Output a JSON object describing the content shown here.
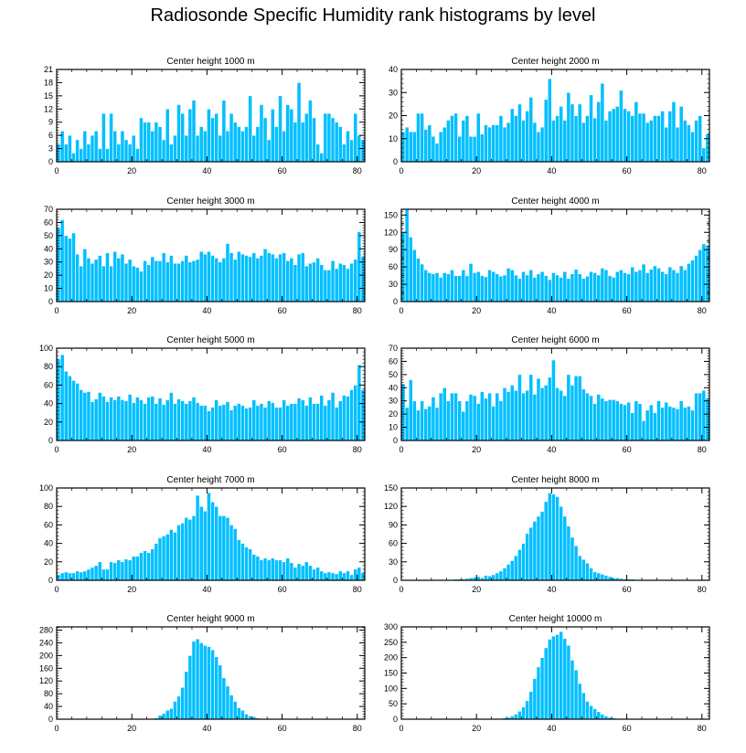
{
  "title": "Radiosonde Specific Humidity rank histograms by level",
  "colors": {
    "bar": "#00BFFF",
    "bar_edge": "#ffffff",
    "axis": "#000000"
  },
  "chart_data": [
    {
      "type": "bar",
      "title": "Center height 1000 m",
      "ylim": [
        0,
        21
      ],
      "yticks": [
        0,
        3,
        6,
        9,
        12,
        15,
        18,
        21
      ],
      "xticks": [
        0,
        20,
        40,
        60,
        80
      ],
      "values": [
        4,
        7,
        4,
        6,
        2,
        5,
        3,
        7,
        4,
        6,
        7,
        3,
        11,
        3,
        11,
        7,
        4,
        7,
        5,
        4,
        6,
        3,
        10,
        9,
        9,
        7,
        9,
        8,
        5,
        12,
        4,
        6,
        13,
        11,
        6,
        12,
        14,
        6,
        8,
        7,
        12,
        10,
        11,
        6,
        14,
        7,
        11,
        9,
        8,
        7,
        8,
        15,
        6,
        8,
        13,
        10,
        5,
        12,
        8,
        15,
        7,
        13,
        12,
        9,
        18,
        9,
        11,
        14,
        10,
        4,
        2,
        11,
        11,
        10,
        9,
        8,
        4,
        7,
        5,
        11,
        6,
        5
      ]
    },
    {
      "type": "bar",
      "title": "Center height 2000 m",
      "ylim": [
        0,
        40
      ],
      "yticks": [
        0,
        10,
        20,
        30,
        40
      ],
      "xticks": [
        0,
        20,
        40,
        60,
        80
      ],
      "values": [
        13,
        15,
        13,
        13,
        21,
        21,
        14,
        16,
        11,
        8,
        13,
        15,
        18,
        20,
        21,
        11,
        18,
        20,
        11,
        11,
        21,
        12,
        16,
        15,
        16,
        16,
        20,
        15,
        17,
        23,
        20,
        25,
        18,
        22,
        28,
        17,
        13,
        15,
        27,
        36,
        18,
        20,
        24,
        18,
        30,
        25,
        20,
        25,
        17,
        20,
        29,
        19,
        26,
        34,
        18,
        22,
        23,
        24,
        31,
        23,
        22,
        20,
        26,
        21,
        21,
        17,
        18,
        20,
        20,
        22,
        15,
        22,
        26,
        15,
        24,
        18,
        16,
        13,
        18,
        20,
        6,
        12
      ]
    },
    {
      "type": "bar",
      "title": "Center height 3000 m",
      "ylim": [
        0,
        70
      ],
      "yticks": [
        0,
        10,
        20,
        30,
        40,
        50,
        60,
        70
      ],
      "xticks": [
        0,
        20,
        40,
        60,
        80
      ],
      "values": [
        56,
        62,
        50,
        48,
        52,
        36,
        27,
        40,
        33,
        29,
        32,
        35,
        27,
        37,
        27,
        38,
        33,
        36,
        29,
        32,
        27,
        26,
        23,
        31,
        28,
        34,
        31,
        31,
        37,
        30,
        35,
        29,
        29,
        31,
        35,
        30,
        31,
        32,
        38,
        36,
        38,
        35,
        33,
        30,
        33,
        44,
        37,
        32,
        38,
        36,
        35,
        34,
        37,
        33,
        35,
        40,
        37,
        36,
        33,
        36,
        37,
        31,
        33,
        28,
        36,
        37,
        27,
        29,
        30,
        33,
        28,
        24,
        24,
        31,
        25,
        29,
        28,
        25,
        29,
        32,
        53,
        34
      ]
    },
    {
      "type": "bar",
      "title": "Center height 4000 m",
      "ylim": [
        0,
        160
      ],
      "yticks": [
        0,
        15,
        30,
        45,
        60,
        75,
        90,
        105,
        120,
        135,
        150,
        160
      ],
      "ytick_labels": [
        "0",
        "30",
        "60",
        "90",
        "120",
        "150"
      ],
      "xticks": [
        0,
        20,
        40,
        60,
        80
      ],
      "values": [
        120,
        160,
        112,
        90,
        75,
        65,
        55,
        50,
        48,
        50,
        42,
        50,
        48,
        55,
        45,
        45,
        55,
        45,
        66,
        50,
        52,
        45,
        43,
        55,
        52,
        48,
        44,
        46,
        58,
        55,
        46,
        40,
        52,
        46,
        55,
        42,
        48,
        52,
        45,
        38,
        50,
        46,
        42,
        52,
        40,
        48,
        56,
        48,
        40,
        44,
        52,
        50,
        46,
        58,
        55,
        45,
        42,
        52,
        55,
        50,
        48,
        60,
        52,
        55,
        65,
        50,
        56,
        62,
        58,
        52,
        48,
        60,
        55,
        50,
        62,
        55,
        66,
        72,
        80,
        90,
        100,
        98
      ]
    },
    {
      "type": "bar",
      "title": "Center height 5000 m",
      "ylim": [
        0,
        100
      ],
      "yticks": [
        0,
        20,
        40,
        60,
        80,
        100
      ],
      "xticks": [
        0,
        20,
        40,
        60,
        80
      ],
      "values": [
        88,
        93,
        75,
        70,
        65,
        62,
        55,
        52,
        53,
        42,
        45,
        52,
        48,
        42,
        47,
        44,
        48,
        44,
        43,
        50,
        41,
        47,
        44,
        40,
        47,
        48,
        40,
        46,
        39,
        44,
        52,
        40,
        45,
        43,
        40,
        43,
        47,
        41,
        38,
        38,
        32,
        36,
        44,
        38,
        39,
        42,
        33,
        38,
        40,
        38,
        35,
        36,
        44,
        38,
        40,
        36,
        43,
        41,
        36,
        36,
        44,
        38,
        40,
        40,
        46,
        44,
        38,
        47,
        40,
        40,
        49,
        38,
        44,
        52,
        36,
        43,
        49,
        48,
        55,
        60,
        82,
        55
      ]
    },
    {
      "type": "bar",
      "title": "Center height 6000 m",
      "ylim": [
        0,
        70
      ],
      "yticks": [
        0,
        10,
        20,
        30,
        40,
        50,
        60,
        70
      ],
      "xticks": [
        0,
        20,
        40,
        60,
        80
      ],
      "values": [
        43,
        25,
        46,
        30,
        23,
        30,
        24,
        26,
        33,
        25,
        36,
        40,
        30,
        36,
        36,
        30,
        22,
        30,
        35,
        34,
        28,
        37,
        32,
        36,
        26,
        36,
        30,
        40,
        37,
        42,
        38,
        50,
        36,
        38,
        50,
        35,
        47,
        40,
        42,
        48,
        61,
        40,
        38,
        34,
        50,
        42,
        49,
        49,
        39,
        36,
        34,
        28,
        35,
        32,
        30,
        31,
        31,
        30,
        28,
        27,
        29,
        21,
        30,
        28,
        15,
        23,
        27,
        21,
        30,
        25,
        29,
        26,
        25,
        24,
        30,
        25,
        26,
        23,
        36,
        36,
        38,
        32
      ]
    },
    {
      "type": "bar",
      "title": "Center height 7000 m",
      "ylim": [
        0,
        100
      ],
      "yticks": [
        0,
        20,
        40,
        60,
        80,
        100
      ],
      "xticks": [
        0,
        20,
        40,
        60,
        80
      ],
      "values": [
        6,
        8,
        9,
        8,
        8,
        10,
        9,
        10,
        12,
        14,
        16,
        20,
        12,
        12,
        20,
        19,
        22,
        20,
        23,
        22,
        26,
        26,
        30,
        32,
        30,
        34,
        40,
        46,
        48,
        50,
        55,
        52,
        60,
        62,
        68,
        66,
        70,
        92,
        80,
        75,
        95,
        85,
        80,
        70,
        70,
        68,
        60,
        56,
        44,
        40,
        36,
        34,
        28,
        26,
        22,
        24,
        22,
        24,
        22,
        22,
        20,
        24,
        19,
        14,
        18,
        16,
        20,
        16,
        12,
        14,
        10,
        8,
        9,
        8,
        7,
        10,
        8,
        10,
        6,
        12,
        14,
        8
      ]
    },
    {
      "type": "bar",
      "title": "Center height 8000 m",
      "ylim": [
        0,
        150
      ],
      "yticks": [
        0,
        30,
        60,
        90,
        120,
        150
      ],
      "xticks": [
        0,
        20,
        40,
        60,
        80
      ],
      "values": [
        0,
        0,
        0,
        0,
        0,
        0,
        0,
        0,
        0,
        0,
        1,
        1,
        1,
        1,
        2,
        2,
        2,
        3,
        4,
        5,
        6,
        4,
        8,
        7,
        9,
        12,
        15,
        20,
        26,
        32,
        40,
        50,
        60,
        76,
        86,
        96,
        104,
        112,
        128,
        142,
        140,
        136,
        120,
        104,
        88,
        70,
        56,
        40,
        34,
        28,
        20,
        14,
        12,
        10,
        8,
        6,
        4,
        4,
        3,
        2,
        2,
        2,
        1,
        1,
        1,
        0,
        0,
        0,
        0,
        0,
        0,
        0,
        0,
        0,
        0,
        0,
        0,
        0,
        0,
        0,
        0,
        0
      ]
    },
    {
      "type": "bar",
      "title": "Center height 9000 m",
      "ylim": [
        0,
        290
      ],
      "yticks": [
        0,
        40,
        80,
        120,
        160,
        200,
        240,
        280
      ],
      "xticks": [
        0,
        20,
        40,
        60,
        80
      ],
      "values": [
        0,
        0,
        0,
        0,
        0,
        0,
        0,
        0,
        0,
        0,
        0,
        0,
        0,
        0,
        0,
        0,
        0,
        0,
        0,
        0,
        0,
        0,
        0,
        0,
        1,
        2,
        4,
        12,
        18,
        28,
        34,
        56,
        72,
        100,
        150,
        200,
        245,
        252,
        240,
        232,
        228,
        218,
        196,
        170,
        130,
        104,
        76,
        56,
        36,
        28,
        16,
        10,
        8,
        4,
        2,
        2,
        1,
        1,
        0,
        0,
        0,
        0,
        0,
        0,
        0,
        0,
        0,
        0,
        0,
        0,
        0,
        0,
        0,
        0,
        0,
        0,
        0,
        0,
        0,
        0,
        0,
        0
      ]
    },
    {
      "type": "bar",
      "title": "Center height 10000 m",
      "ylim": [
        0,
        300
      ],
      "yticks": [
        0,
        50,
        100,
        150,
        200,
        250,
        300
      ],
      "xticks": [
        0,
        20,
        40,
        60,
        80
      ],
      "values": [
        0,
        0,
        0,
        0,
        0,
        0,
        0,
        0,
        0,
        0,
        0,
        0,
        0,
        0,
        0,
        0,
        0,
        0,
        0,
        0,
        0,
        0,
        0,
        0,
        0,
        1,
        2,
        4,
        6,
        10,
        16,
        26,
        40,
        60,
        90,
        132,
        170,
        200,
        232,
        260,
        270,
        275,
        285,
        262,
        240,
        192,
        160,
        116,
        86,
        58,
        44,
        34,
        24,
        16,
        10,
        6,
        4,
        2,
        2,
        1,
        1,
        1,
        0,
        0,
        0,
        0,
        0,
        0,
        0,
        0,
        0,
        0,
        0,
        0,
        0,
        0,
        0,
        0,
        0,
        0,
        0,
        0
      ]
    }
  ]
}
